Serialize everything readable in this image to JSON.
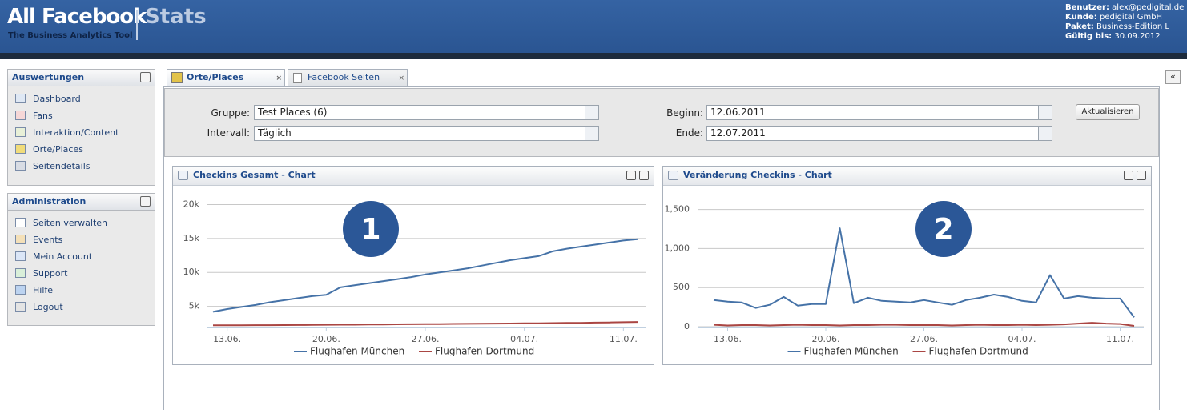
{
  "header": {
    "title": "All Facebook",
    "tagline": "The Business Analytics Tool",
    "product": "Stats",
    "account": [
      {
        "label": "Benutzer:",
        "value": "alex@pedigital.de"
      },
      {
        "label": "Kunde:",
        "value": "pedigital GmbH"
      },
      {
        "label": "Paket:",
        "value": "Business-Edition L"
      },
      {
        "label": "Gültig bis:",
        "value": "30.09.2012"
      }
    ]
  },
  "sidebar": [
    {
      "title": "Auswertungen",
      "items": [
        "Dashboard",
        "Fans",
        "Interaktion/Content",
        "Orte/Places",
        "Seitendetails"
      ]
    },
    {
      "title": "Administration",
      "items": [
        "Seiten verwalten",
        "Events",
        "Mein Account",
        "Support",
        "Hilfe",
        "Logout"
      ]
    }
  ],
  "tabs": [
    "Orte/Places",
    "Facebook Seiten"
  ],
  "form": {
    "group_label": "Gruppe:",
    "group_value": "Test Places (6)",
    "interval_label": "Intervall:",
    "interval_value": "Täglich",
    "start_label": "Beginn:",
    "start_value": "12.06.2011",
    "end_label": "Ende:",
    "end_value": "12.07.2011",
    "button": "Aktualisieren"
  },
  "chart_data": [
    {
      "type": "line",
      "title": "Checkins Gesamt - Chart",
      "annotation": "1",
      "categories": [
        null,
        "13.06.",
        null,
        null,
        null,
        null,
        null,
        null,
        "20.06.",
        null,
        null,
        null,
        null,
        null,
        null,
        "27.06.",
        null,
        null,
        null,
        null,
        null,
        null,
        "04.07.",
        null,
        null,
        null,
        null,
        null,
        null,
        "11.07.",
        null
      ],
      "series": [
        {
          "name": "Flughafen München",
          "color": "#4572a7",
          "values": [
            4200,
            4600,
            4900,
            5200,
            5600,
            5900,
            6200,
            6500,
            6700,
            7800,
            8100,
            8400,
            8700,
            9000,
            9300,
            9700,
            10000,
            10300,
            10600,
            11000,
            11400,
            11800,
            12100,
            12400,
            13100,
            13500,
            13800,
            14100,
            14400,
            14700,
            14900
          ]
        },
        {
          "name": "Flughafen Dortmund",
          "color": "#aa4643",
          "values": [
            2200,
            2200,
            2210,
            2220,
            2230,
            2240,
            2250,
            2260,
            2280,
            2290,
            2300,
            2320,
            2330,
            2350,
            2360,
            2380,
            2390,
            2410,
            2420,
            2440,
            2460,
            2470,
            2490,
            2510,
            2530,
            2550,
            2570,
            2600,
            2630,
            2660,
            2700
          ]
        }
      ],
      "ylim": [
        2000,
        21000
      ],
      "yticks": [
        {
          "value": 5000,
          "label": "5k"
        },
        {
          "value": 10000,
          "label": "10k"
        },
        {
          "value": 15000,
          "label": "15k"
        },
        {
          "value": 20000,
          "label": "20k"
        }
      ],
      "grid": true
    },
    {
      "type": "line",
      "title": "Veränderung Checkins - Chart",
      "annotation": "2",
      "categories": [
        null,
        "13.06.",
        null,
        null,
        null,
        null,
        null,
        null,
        "20.06.",
        null,
        null,
        null,
        null,
        null,
        null,
        "27.06.",
        null,
        null,
        null,
        null,
        null,
        null,
        "04.07.",
        null,
        null,
        null,
        null,
        null,
        null,
        "11.07.",
        null
      ],
      "series": [
        {
          "name": "Flughafen München",
          "color": "#4572a7",
          "values": [
            340,
            320,
            310,
            240,
            280,
            380,
            270,
            290,
            290,
            1260,
            300,
            370,
            330,
            320,
            310,
            340,
            310,
            280,
            340,
            370,
            410,
            380,
            330,
            310,
            660,
            360,
            390,
            370,
            360,
            360,
            120
          ]
        },
        {
          "name": "Flughafen Dortmund",
          "color": "#aa4643",
          "values": [
            25,
            15,
            20,
            20,
            15,
            20,
            25,
            20,
            20,
            15,
            20,
            20,
            25,
            25,
            20,
            20,
            20,
            15,
            20,
            25,
            20,
            20,
            25,
            20,
            25,
            30,
            40,
            50,
            40,
            35,
            10
          ]
        }
      ],
      "ylim": [
        0,
        1650
      ],
      "yticks": [
        0,
        500,
        {
          "value": 1000,
          "label": "1,000"
        },
        {
          "value": 1500,
          "label": "1,500"
        }
      ],
      "grid": true
    }
  ]
}
